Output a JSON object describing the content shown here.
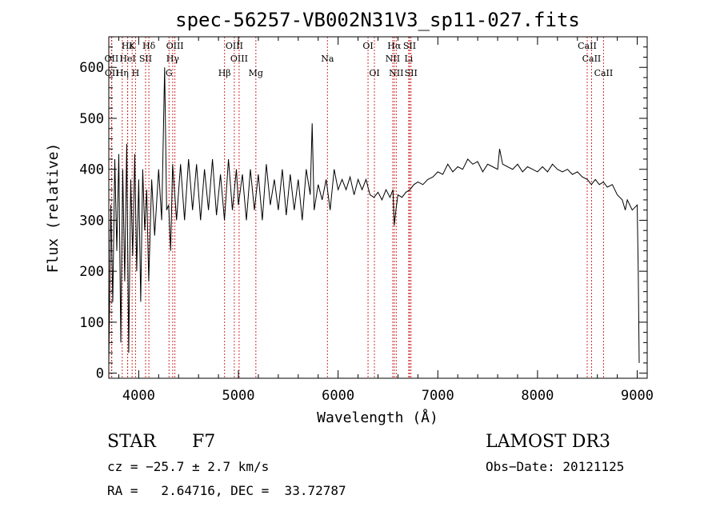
{
  "chart_data": {
    "type": "line",
    "title": "spec-56257-VB002N31V3_sp11-027.fits",
    "xlabel": "Wavelength (Å)",
    "ylabel": "Flux (relative)",
    "xlim": [
      3700,
      9100
    ],
    "ylim": [
      -10,
      660
    ],
    "x_ticks": [
      4000,
      5000,
      6000,
      7000,
      8000,
      9000
    ],
    "y_ticks": [
      0,
      100,
      200,
      300,
      400,
      500,
      600
    ],
    "x_tick_labels": [
      "4000",
      "5000",
      "6000",
      "7000",
      "8000",
      "9000"
    ],
    "y_tick_labels": [
      "0",
      "100",
      "200",
      "300",
      "400",
      "500",
      "600"
    ],
    "line_color": "#000000",
    "marker_color": "#d23030",
    "series": [
      {
        "name": "flux",
        "points": [
          [
            3700,
            20
          ],
          [
            3720,
            330
          ],
          [
            3740,
            140
          ],
          [
            3760,
            420
          ],
          [
            3780,
            240
          ],
          [
            3800,
            430
          ],
          [
            3820,
            60
          ],
          [
            3840,
            400
          ],
          [
            3860,
            180
          ],
          [
            3880,
            450
          ],
          [
            3900,
            40
          ],
          [
            3920,
            380
          ],
          [
            3940,
            230
          ],
          [
            3960,
            430
          ],
          [
            3980,
            200
          ],
          [
            4000,
            380
          ],
          [
            4020,
            140
          ],
          [
            4040,
            400
          ],
          [
            4060,
            280
          ],
          [
            4080,
            360
          ],
          [
            4100,
            180
          ],
          [
            4130,
            380
          ],
          [
            4160,
            270
          ],
          [
            4200,
            400
          ],
          [
            4230,
            300
          ],
          [
            4260,
            600
          ],
          [
            4280,
            320
          ],
          [
            4300,
            330
          ],
          [
            4320,
            240
          ],
          [
            4340,
            410
          ],
          [
            4380,
            300
          ],
          [
            4420,
            410
          ],
          [
            4460,
            300
          ],
          [
            4500,
            420
          ],
          [
            4540,
            320
          ],
          [
            4580,
            410
          ],
          [
            4620,
            300
          ],
          [
            4660,
            400
          ],
          [
            4700,
            320
          ],
          [
            4740,
            420
          ],
          [
            4780,
            310
          ],
          [
            4820,
            390
          ],
          [
            4860,
            300
          ],
          [
            4900,
            420
          ],
          [
            4940,
            320
          ],
          [
            4980,
            400
          ],
          [
            5000,
            330
          ],
          [
            5040,
            390
          ],
          [
            5080,
            300
          ],
          [
            5120,
            400
          ],
          [
            5160,
            320
          ],
          [
            5200,
            390
          ],
          [
            5240,
            300
          ],
          [
            5280,
            410
          ],
          [
            5320,
            330
          ],
          [
            5360,
            380
          ],
          [
            5400,
            320
          ],
          [
            5440,
            400
          ],
          [
            5480,
            310
          ],
          [
            5520,
            390
          ],
          [
            5560,
            320
          ],
          [
            5600,
            380
          ],
          [
            5640,
            300
          ],
          [
            5680,
            400
          ],
          [
            5720,
            350
          ],
          [
            5740,
            490
          ],
          [
            5760,
            320
          ],
          [
            5800,
            370
          ],
          [
            5840,
            340
          ],
          [
            5880,
            380
          ],
          [
            5920,
            320
          ],
          [
            5960,
            400
          ],
          [
            6000,
            360
          ],
          [
            6040,
            380
          ],
          [
            6080,
            360
          ],
          [
            6120,
            385
          ],
          [
            6160,
            350
          ],
          [
            6200,
            380
          ],
          [
            6240,
            360
          ],
          [
            6280,
            380
          ],
          [
            6320,
            350
          ],
          [
            6360,
            345
          ],
          [
            6400,
            355
          ],
          [
            6440,
            340
          ],
          [
            6480,
            360
          ],
          [
            6520,
            345
          ],
          [
            6550,
            360
          ],
          [
            6563,
            290
          ],
          [
            6580,
            320
          ],
          [
            6600,
            350
          ],
          [
            6640,
            345
          ],
          [
            6680,
            355
          ],
          [
            6720,
            360
          ],
          [
            6760,
            370
          ],
          [
            6800,
            375
          ],
          [
            6850,
            370
          ],
          [
            6900,
            380
          ],
          [
            6950,
            385
          ],
          [
            7000,
            395
          ],
          [
            7050,
            390
          ],
          [
            7100,
            410
          ],
          [
            7150,
            395
          ],
          [
            7200,
            405
          ],
          [
            7250,
            400
          ],
          [
            7300,
            420
          ],
          [
            7350,
            410
          ],
          [
            7400,
            415
          ],
          [
            7450,
            395
          ],
          [
            7500,
            410
          ],
          [
            7550,
            405
          ],
          [
            7600,
            400
          ],
          [
            7620,
            440
          ],
          [
            7650,
            410
          ],
          [
            7700,
            405
          ],
          [
            7750,
            400
          ],
          [
            7800,
            410
          ],
          [
            7850,
            395
          ],
          [
            7900,
            405
          ],
          [
            7950,
            400
          ],
          [
            8000,
            395
          ],
          [
            8050,
            405
          ],
          [
            8100,
            395
          ],
          [
            8150,
            410
          ],
          [
            8200,
            400
          ],
          [
            8250,
            395
          ],
          [
            8300,
            400
          ],
          [
            8350,
            390
          ],
          [
            8400,
            395
          ],
          [
            8450,
            385
          ],
          [
            8500,
            380
          ],
          [
            8540,
            370
          ],
          [
            8580,
            380
          ],
          [
            8620,
            370
          ],
          [
            8660,
            375
          ],
          [
            8700,
            365
          ],
          [
            8750,
            370
          ],
          [
            8800,
            350
          ],
          [
            8850,
            340
          ],
          [
            8880,
            320
          ],
          [
            8900,
            340
          ],
          [
            8950,
            320
          ],
          [
            9000,
            330
          ],
          [
            9010,
            200
          ],
          [
            9020,
            20
          ]
        ]
      }
    ],
    "lines": [
      {
        "label": "Hε",
        "x": 3889,
        "row": 1
      },
      {
        "label": "OII",
        "x": 3727,
        "row": 2
      },
      {
        "label": "OII",
        "x": 3730,
        "row": 3
      },
      {
        "label": "Hη",
        "x": 3835,
        "row": 3
      },
      {
        "label": "K",
        "x": 3934,
        "row": 1
      },
      {
        "label": "HeI",
        "x": 3889,
        "row": 2
      },
      {
        "label": "H",
        "x": 3968,
        "row": 3
      },
      {
        "label": "Hδ",
        "x": 4102,
        "row": 1
      },
      {
        "label": "SII",
        "x": 4069,
        "row": 2
      },
      {
        "label": "OIII",
        "x": 4363,
        "row": 1
      },
      {
        "label": "Hγ",
        "x": 4341,
        "row": 2
      },
      {
        "label": "G",
        "x": 4304,
        "row": 3
      },
      {
        "label": "Hβ",
        "x": 4861,
        "row": 3
      },
      {
        "label": "OIII",
        "x": 4959,
        "row": 1
      },
      {
        "label": "OIII",
        "x": 5007,
        "row": 2
      },
      {
        "label": "Mg",
        "x": 5175,
        "row": 3
      },
      {
        "label": "Na",
        "x": 5893,
        "row": 2
      },
      {
        "label": "OI",
        "x": 6300,
        "row": 1
      },
      {
        "label": "OI",
        "x": 6364,
        "row": 3
      },
      {
        "label": "Hα",
        "x": 6563,
        "row": 1
      },
      {
        "label": "NII",
        "x": 6548,
        "row": 2
      },
      {
        "label": "NII",
        "x": 6583,
        "row": 3
      },
      {
        "label": "SII",
        "x": 6717,
        "row": 1
      },
      {
        "label": "Li",
        "x": 6708,
        "row": 2
      },
      {
        "label": "SII",
        "x": 6731,
        "row": 3
      },
      {
        "label": "CaII",
        "x": 8498,
        "row": 1
      },
      {
        "label": "CaII",
        "x": 8542,
        "row": 2
      },
      {
        "label": "CaII",
        "x": 8662,
        "row": 3
      }
    ]
  },
  "info": {
    "object_class": "STAR",
    "subclass": "F7",
    "survey": "LAMOST DR3",
    "cz": "cz = −25.7 ± 2.7 km/s",
    "obs_date": "Obs−Date: 20121125",
    "radec": "RA =   2.64716, DEC =  33.72787"
  }
}
